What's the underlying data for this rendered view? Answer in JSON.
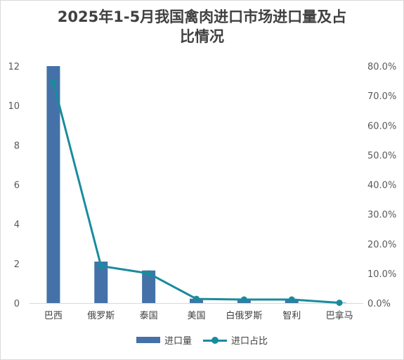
{
  "chart_data": {
    "type": "bar",
    "title_lines": [
      "2025年1-5月我国禽肉进口市场进口量及占",
      "比情况"
    ],
    "categories": [
      "巴西",
      "俄罗斯",
      "泰国",
      "美国",
      "白俄罗斯",
      "智利",
      "巴拿马"
    ],
    "series": [
      {
        "name": "进口量",
        "type": "bar",
        "axis": "left",
        "color": "#4472a8",
        "values": [
          12.0,
          2.1,
          1.65,
          0.22,
          0.2,
          0.2,
          0.02
        ]
      },
      {
        "name": "进口占比",
        "type": "line",
        "axis": "right",
        "color": "#1a8b9d",
        "values": [
          74.5,
          12.5,
          10.0,
          1.4,
          1.2,
          1.2,
          0.1
        ]
      }
    ],
    "y_left": {
      "min": 0,
      "max": 12,
      "ticks": [
        0,
        2,
        4,
        6,
        8,
        10,
        12
      ],
      "labels": [
        "0",
        "2",
        "4",
        "6",
        "8",
        "10",
        "12"
      ]
    },
    "y_right": {
      "min": 0,
      "max": 80,
      "ticks": [
        0,
        10,
        20,
        30,
        40,
        50,
        60,
        70,
        80
      ],
      "labels": [
        "0.0%",
        "10.0%",
        "20.0%",
        "30.0%",
        "40.0%",
        "50.0%",
        "60.0%",
        "70.0%",
        "80.0%"
      ]
    },
    "grid": false,
    "legend_position": "bottom"
  }
}
